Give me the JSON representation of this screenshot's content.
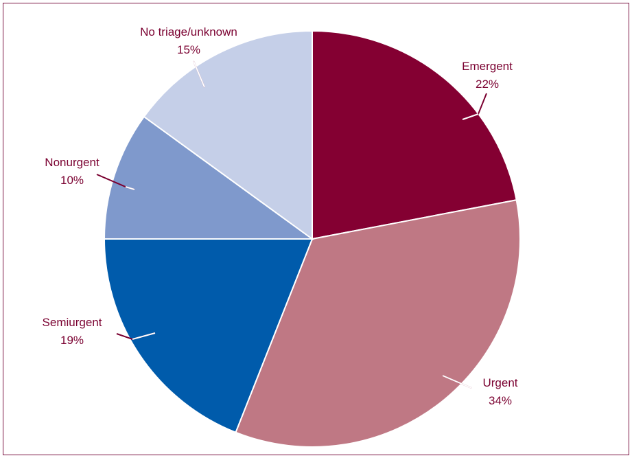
{
  "chart_data": {
    "type": "pie",
    "title": "",
    "slices": [
      {
        "label": "Emergent",
        "value": 22,
        "value_label": "22%",
        "color": "#840032"
      },
      {
        "label": "Urgent",
        "value": 34,
        "value_label": "34%",
        "color": "#bf7884"
      },
      {
        "label": "Semiurgent",
        "value": 19,
        "value_label": "19%",
        "color": "#005bab"
      },
      {
        "label": "Nonurgent",
        "value": 10,
        "value_label": "10%",
        "color": "#7f99cc"
      },
      {
        "label": "No triage/unknown",
        "value": 15,
        "value_label": "15%",
        "color": "#c5cfe8"
      }
    ],
    "start_angle": "12 o'clock",
    "direction": "clockwise",
    "slice_border_color": "#ffffff",
    "label_color": "#7a0030",
    "leader_line_color": "#7a0030",
    "frame_color": "#7a1040"
  }
}
